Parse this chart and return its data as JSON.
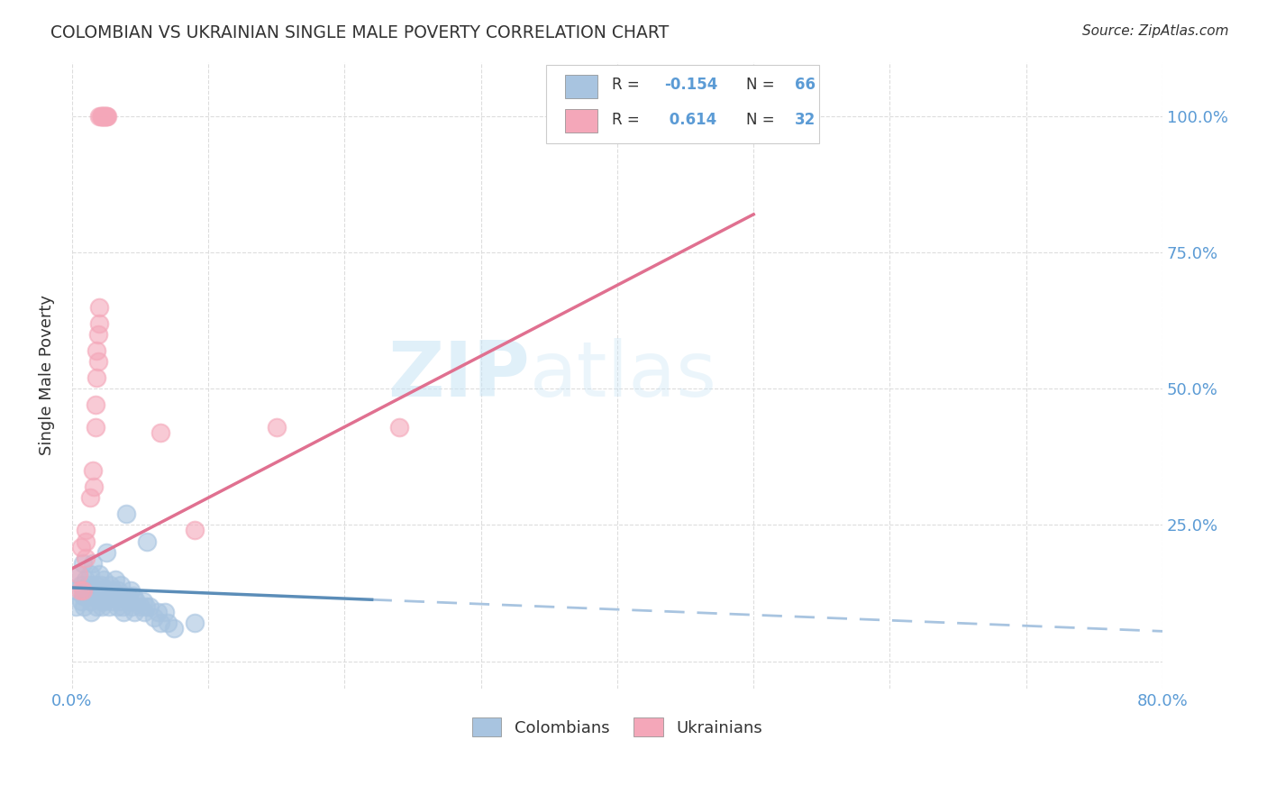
{
  "title": "COLOMBIAN VS UKRAINIAN SINGLE MALE POVERTY CORRELATION CHART",
  "source": "Source: ZipAtlas.com",
  "ylabel": "Single Male Poverty",
  "xlim": [
    0.0,
    0.8
  ],
  "ylim": [
    -0.05,
    1.1
  ],
  "colombian_color": "#a8c4e0",
  "colombian_line_color": "#5b8db8",
  "ukrainian_color": "#f4a7b9",
  "ukrainian_line_color": "#e07090",
  "colombian_R": -0.154,
  "colombian_N": 66,
  "ukrainian_R": 0.614,
  "ukrainian_N": 32,
  "colombian_scatter": [
    [
      0.003,
      0.13
    ],
    [
      0.003,
      0.1
    ],
    [
      0.005,
      0.16
    ],
    [
      0.007,
      0.14
    ],
    [
      0.007,
      0.11
    ],
    [
      0.008,
      0.18
    ],
    [
      0.008,
      0.12
    ],
    [
      0.009,
      0.1
    ],
    [
      0.01,
      0.15
    ],
    [
      0.01,
      0.13
    ],
    [
      0.011,
      0.12
    ],
    [
      0.012,
      0.14
    ],
    [
      0.013,
      0.16
    ],
    [
      0.013,
      0.11
    ],
    [
      0.014,
      0.09
    ],
    [
      0.014,
      0.13
    ],
    [
      0.015,
      0.18
    ],
    [
      0.016,
      0.12
    ],
    [
      0.017,
      0.14
    ],
    [
      0.018,
      0.1
    ],
    [
      0.019,
      0.13
    ],
    [
      0.02,
      0.16
    ],
    [
      0.02,
      0.12
    ],
    [
      0.021,
      0.11
    ],
    [
      0.021,
      0.14
    ],
    [
      0.022,
      0.13
    ],
    [
      0.022,
      0.1
    ],
    [
      0.023,
      0.15
    ],
    [
      0.024,
      0.11
    ],
    [
      0.025,
      0.13
    ],
    [
      0.025,
      0.2
    ],
    [
      0.026,
      0.12
    ],
    [
      0.027,
      0.1
    ],
    [
      0.028,
      0.14
    ],
    [
      0.03,
      0.11
    ],
    [
      0.03,
      0.13
    ],
    [
      0.031,
      0.12
    ],
    [
      0.032,
      0.15
    ],
    [
      0.033,
      0.1
    ],
    [
      0.034,
      0.13
    ],
    [
      0.035,
      0.11
    ],
    [
      0.035,
      0.12
    ],
    [
      0.036,
      0.14
    ],
    [
      0.037,
      0.1
    ],
    [
      0.038,
      0.09
    ],
    [
      0.04,
      0.27
    ],
    [
      0.041,
      0.12
    ],
    [
      0.042,
      0.11
    ],
    [
      0.043,
      0.13
    ],
    [
      0.044,
      0.1
    ],
    [
      0.045,
      0.12
    ],
    [
      0.046,
      0.09
    ],
    [
      0.047,
      0.11
    ],
    [
      0.05,
      0.1
    ],
    [
      0.052,
      0.11
    ],
    [
      0.053,
      0.09
    ],
    [
      0.054,
      0.1
    ],
    [
      0.055,
      0.22
    ],
    [
      0.057,
      0.1
    ],
    [
      0.06,
      0.08
    ],
    [
      0.063,
      0.09
    ],
    [
      0.065,
      0.07
    ],
    [
      0.068,
      0.09
    ],
    [
      0.07,
      0.07
    ],
    [
      0.075,
      0.06
    ],
    [
      0.09,
      0.07
    ]
  ],
  "ukrainian_scatter": [
    [
      0.005,
      0.16
    ],
    [
      0.006,
      0.13
    ],
    [
      0.007,
      0.21
    ],
    [
      0.008,
      0.13
    ],
    [
      0.01,
      0.22
    ],
    [
      0.01,
      0.19
    ],
    [
      0.01,
      0.24
    ],
    [
      0.013,
      0.3
    ],
    [
      0.015,
      0.35
    ],
    [
      0.016,
      0.32
    ],
    [
      0.017,
      0.47
    ],
    [
      0.017,
      0.43
    ],
    [
      0.018,
      0.52
    ],
    [
      0.018,
      0.57
    ],
    [
      0.019,
      0.55
    ],
    [
      0.019,
      0.6
    ],
    [
      0.02,
      0.62
    ],
    [
      0.02,
      0.65
    ],
    [
      0.02,
      1.0
    ],
    [
      0.021,
      1.0
    ],
    [
      0.022,
      1.0
    ],
    [
      0.022,
      1.0
    ],
    [
      0.023,
      1.0
    ],
    [
      0.023,
      1.0
    ],
    [
      0.024,
      1.0
    ],
    [
      0.025,
      1.0
    ],
    [
      0.025,
      1.0
    ],
    [
      0.026,
      1.0
    ],
    [
      0.065,
      0.42
    ],
    [
      0.09,
      0.24
    ],
    [
      0.15,
      0.43
    ],
    [
      0.24,
      0.43
    ]
  ],
  "watermark_zip": "ZIP",
  "watermark_atlas": "atlas",
  "legend_labels": [
    "Colombians",
    "Ukrainians"
  ],
  "background_color": "#ffffff",
  "grid_color": "#dddddd",
  "r_label_color": "#5b9bd5",
  "title_color": "#333333",
  "tick_color": "#5b9bd5"
}
